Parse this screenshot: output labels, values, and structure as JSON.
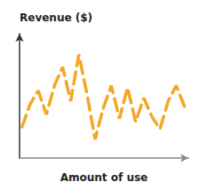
{
  "chart_data": {
    "type": "line",
    "ylabel": "Revenue ($)",
    "xlabel": "Amount of use",
    "x": [
      0,
      1,
      2,
      3,
      4,
      5,
      6,
      7,
      8,
      9,
      10,
      11,
      12,
      13,
      14,
      15,
      16,
      17,
      18,
      19,
      20
    ],
    "values": [
      0.3,
      0.52,
      0.65,
      0.42,
      0.7,
      0.88,
      0.55,
      1.0,
      0.62,
      0.18,
      0.48,
      0.7,
      0.38,
      0.68,
      0.35,
      0.58,
      0.4,
      0.28,
      0.55,
      0.7,
      0.5
    ],
    "color": "#F5A623",
    "line_style": "dashed",
    "marker": "none",
    "xlim": [
      -0.3,
      20.5
    ],
    "ylim": [
      0.0,
      1.2
    ],
    "grid": false,
    "tick_labels": false
  }
}
